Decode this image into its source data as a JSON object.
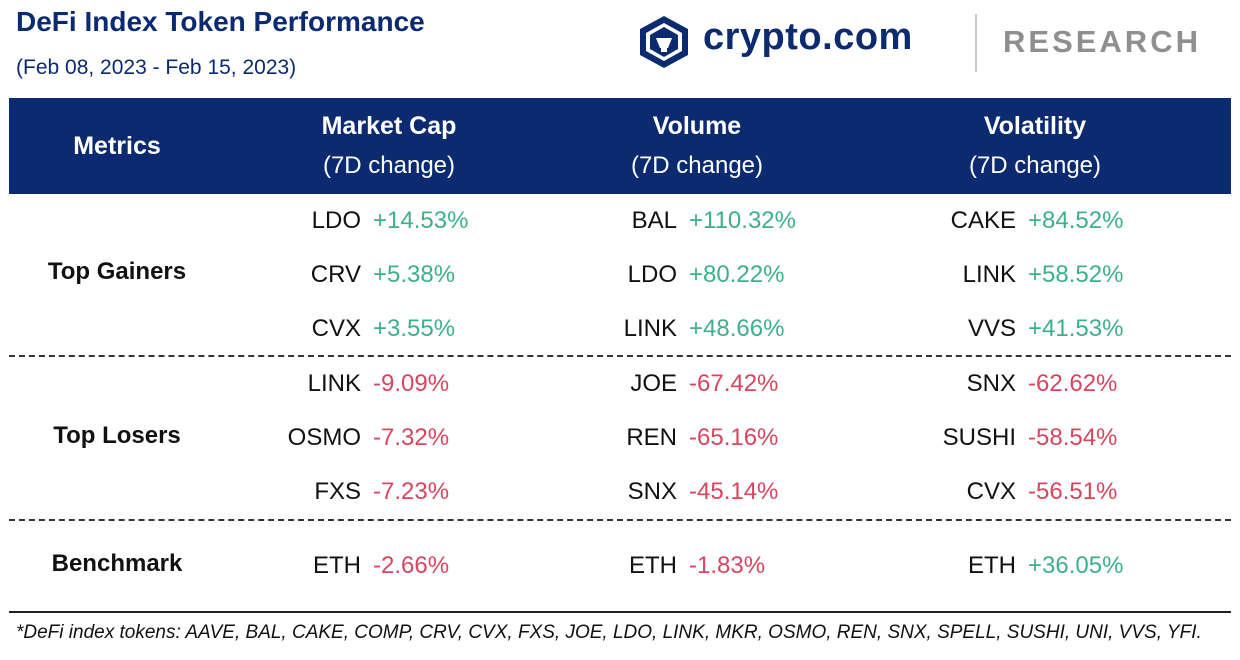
{
  "header": {
    "title": "DeFi Index Token Performance",
    "subtitle": "(Feb 08, 2023 - Feb 15, 2023)",
    "brand": "crypto.com",
    "research": "RESEARCH"
  },
  "colors": {
    "navy": "#0b2a6f",
    "positive": "#3db08a",
    "negative": "#d9455f",
    "research_gray": "#8f8f8f"
  },
  "table": {
    "headers": [
      {
        "l1": "Metrics",
        "l2": ""
      },
      {
        "l1": "Market Cap",
        "l2": "(7D change)"
      },
      {
        "l1": "Volume",
        "l2": "(7D change)"
      },
      {
        "l1": "Volatility",
        "l2": "(7D change)"
      }
    ],
    "sections": [
      {
        "label": "Top Gainers",
        "market_cap": [
          {
            "token": "LDO",
            "change": "+14.53%"
          },
          {
            "token": "CRV",
            "change": "+5.38%"
          },
          {
            "token": "CVX",
            "change": "+3.55%"
          }
        ],
        "volume": [
          {
            "token": "BAL",
            "change": "+110.32%"
          },
          {
            "token": "LDO",
            "change": "+80.22%"
          },
          {
            "token": "LINK",
            "change": "+48.66%"
          }
        ],
        "volatility": [
          {
            "token": "CAKE",
            "change": "+84.52%"
          },
          {
            "token": "LINK",
            "change": "+58.52%"
          },
          {
            "token": "VVS",
            "change": "+41.53%"
          }
        ]
      },
      {
        "label": "Top Losers",
        "market_cap": [
          {
            "token": "LINK",
            "change": "-9.09%"
          },
          {
            "token": "OSMO",
            "change": "-7.32%"
          },
          {
            "token": "FXS",
            "change": "-7.23%"
          }
        ],
        "volume": [
          {
            "token": "JOE",
            "change": "-67.42%"
          },
          {
            "token": "REN",
            "change": "-65.16%"
          },
          {
            "token": "SNX",
            "change": "-45.14%"
          }
        ],
        "volatility": [
          {
            "token": "SNX",
            "change": "-62.62%"
          },
          {
            "token": "SUSHI",
            "change": "-58.54%"
          },
          {
            "token": "CVX",
            "change": "-56.51%"
          }
        ]
      },
      {
        "label": "Benchmark",
        "market_cap": [
          {
            "token": "ETH",
            "change": "-2.66%"
          }
        ],
        "volume": [
          {
            "token": "ETH",
            "change": "-1.83%"
          }
        ],
        "volatility": [
          {
            "token": "ETH",
            "change": "+36.05%"
          }
        ]
      }
    ]
  },
  "footnote": "*DeFi index tokens: AAVE, BAL, CAKE, COMP, CRV, CVX, FXS, JOE, LDO, LINK, MKR, OSMO, REN, SNX, SPELL, SUSHI, UNI, VVS, YFI."
}
